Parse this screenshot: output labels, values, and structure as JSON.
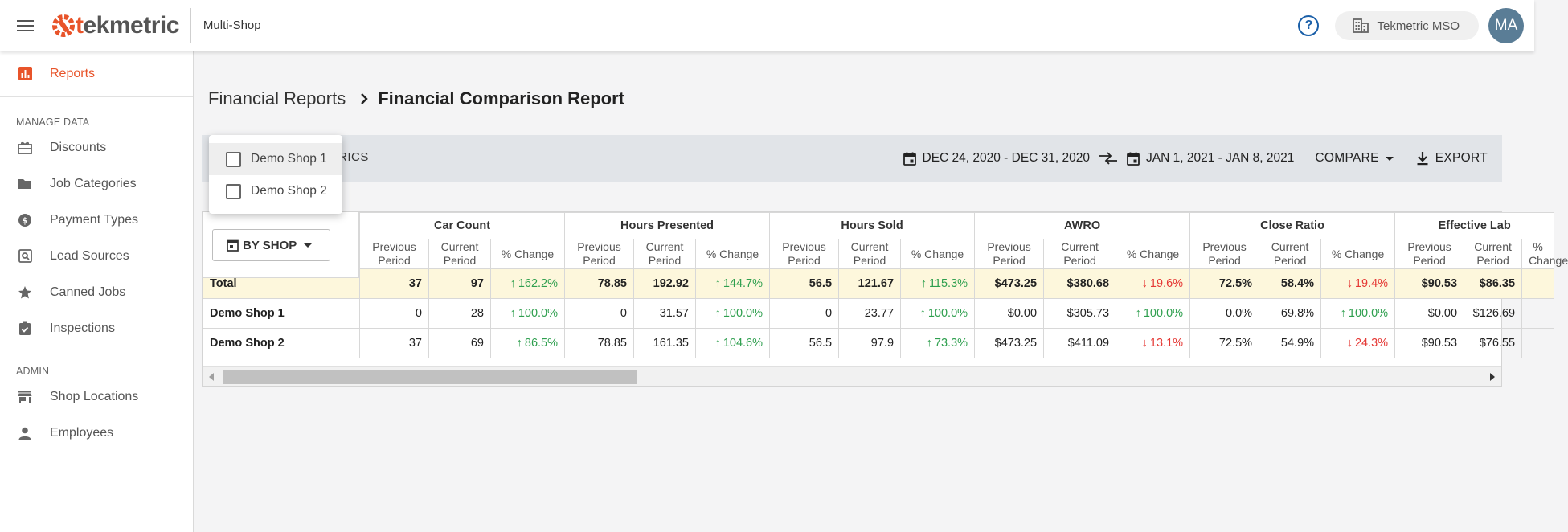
{
  "header": {
    "logo_prefix": "t",
    "logo_rest": "ekmetric",
    "app_name": "Multi-Shop",
    "org_name": "Tekmetric MSO",
    "avatar_initials": "MA",
    "help_symbol": "?"
  },
  "sidebar": {
    "active_item": {
      "label": "Reports",
      "icon": "bar-chart-icon"
    },
    "sections": [
      {
        "heading": "MANAGE DATA",
        "items": [
          {
            "label": "Discounts",
            "icon": "gift-card-icon"
          },
          {
            "label": "Job Categories",
            "icon": "folder-icon"
          },
          {
            "label": "Payment Types",
            "icon": "dollar-circle-icon"
          },
          {
            "label": "Lead Sources",
            "icon": "search-document-icon"
          },
          {
            "label": "Canned Jobs",
            "icon": "star-icon"
          },
          {
            "label": "Inspections",
            "icon": "clipboard-check-icon"
          }
        ]
      },
      {
        "heading": "ADMIN",
        "items": [
          {
            "label": "Shop Locations",
            "icon": "store-icon"
          },
          {
            "label": "Employees",
            "icon": "person-icon"
          }
        ]
      }
    ]
  },
  "breadcrumb": {
    "parent": "Financial Reports",
    "current": "Financial Comparison Report"
  },
  "toolbar": {
    "metrics_label": "RICS",
    "period_a": "DEC 24, 2020 - DEC 31, 2020",
    "period_b": "JAN 1, 2021 - JAN 8, 2021",
    "compare_label": "COMPARE",
    "export_label": "EXPORT"
  },
  "shop_popup": {
    "options": [
      {
        "label": "Demo Shop 1",
        "checked": false
      },
      {
        "label": "Demo Shop 2",
        "checked": false
      }
    ]
  },
  "table": {
    "group_by_label": "BY SHOP",
    "sub_headers": [
      "Previous Period",
      "Current Period",
      "% Change"
    ],
    "groups": [
      "Car Count",
      "Hours Presented",
      "Hours Sold",
      "AWRO",
      "Close Ratio",
      "Effective Lab"
    ],
    "rows": [
      {
        "name": "Total",
        "cells": [
          [
            "37",
            "97",
            "162.2%",
            "up"
          ],
          [
            "78.85",
            "192.92",
            "144.7%",
            "up"
          ],
          [
            "56.5",
            "121.67",
            "115.3%",
            "up"
          ],
          [
            "$473.25",
            "$380.68",
            "19.6%",
            "down"
          ],
          [
            "72.5%",
            "58.4%",
            "19.4%",
            "down"
          ],
          [
            "$90.53",
            "$86.35"
          ]
        ]
      },
      {
        "name": "Demo Shop 1",
        "cells": [
          [
            "0",
            "28",
            "100.0%",
            "up"
          ],
          [
            "0",
            "31.57",
            "100.0%",
            "up"
          ],
          [
            "0",
            "23.77",
            "100.0%",
            "up"
          ],
          [
            "$0.00",
            "$305.73",
            "100.0%",
            "up"
          ],
          [
            "0.0%",
            "69.8%",
            "100.0%",
            "up"
          ],
          [
            "$0.00",
            "$126.69"
          ]
        ]
      },
      {
        "name": "Demo Shop 2",
        "cells": [
          [
            "37",
            "69",
            "86.5%",
            "up"
          ],
          [
            "78.85",
            "161.35",
            "104.6%",
            "up"
          ],
          [
            "56.5",
            "97.9",
            "73.3%",
            "up"
          ],
          [
            "$473.25",
            "$411.09",
            "13.1%",
            "down"
          ],
          [
            "72.5%",
            "54.9%",
            "24.3%",
            "down"
          ],
          [
            "$90.53",
            "$76.55"
          ]
        ]
      }
    ]
  },
  "colors": {
    "brand_orange": "#e8542a",
    "up_green": "#2e9f4e",
    "down_red": "#e53935",
    "total_row_bg": "#fdf7dc"
  }
}
